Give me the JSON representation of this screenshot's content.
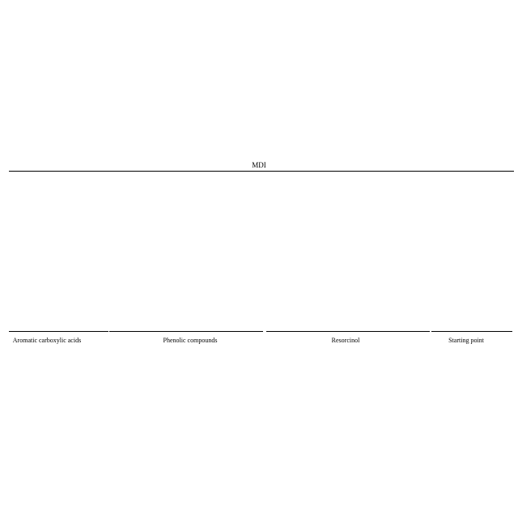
{
  "header": {
    "label": "MDI"
  },
  "groups": [
    {
      "label": "Aromatic carboxylic acids"
    },
    {
      "label": "Phenolic compounds"
    },
    {
      "label": "Resorcinol"
    },
    {
      "label": "Starting point"
    }
  ]
}
